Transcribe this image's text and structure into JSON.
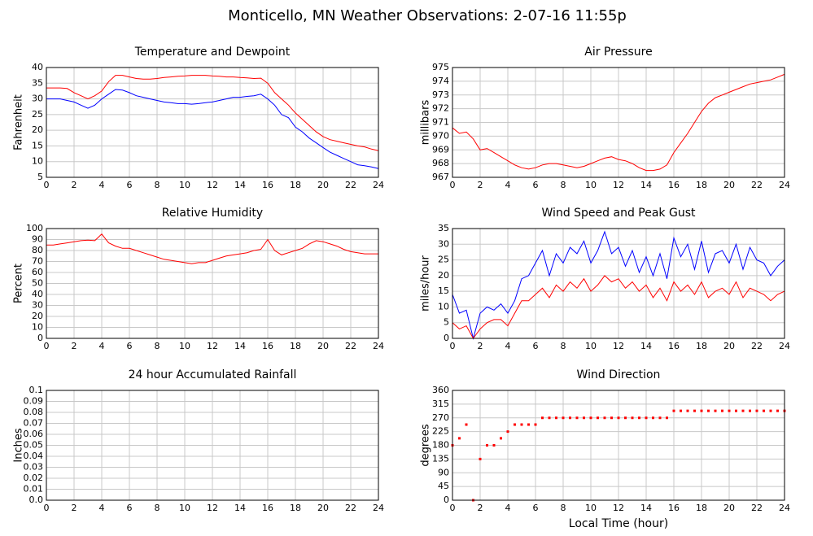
{
  "title": "Monticello, MN Weather Observations: 2-07-16 11:55p",
  "chart_data": [
    {
      "type": "line",
      "title": "Temperature and Dewpoint",
      "ylabel": "Fahrenheit",
      "x": [
        0,
        0.5,
        1,
        1.5,
        2,
        2.5,
        3,
        3.5,
        4,
        4.5,
        5,
        5.5,
        6,
        6.5,
        7,
        7.5,
        8,
        8.5,
        9,
        9.5,
        10,
        10.5,
        11,
        11.5,
        12,
        12.5,
        13,
        13.5,
        14,
        14.5,
        15,
        15.5,
        16,
        16.5,
        17,
        17.5,
        18,
        18.5,
        19,
        19.5,
        20,
        20.5,
        21,
        21.5,
        22,
        22.5,
        23,
        23.5,
        24
      ],
      "series": [
        {
          "color": "#ff0000",
          "values": [
            33.5,
            33.5,
            33.5,
            33.3,
            32,
            31,
            30,
            31,
            32.5,
            35.5,
            37.5,
            37.5,
            37,
            36.5,
            36.3,
            36.3,
            36.5,
            36.8,
            37,
            37.2,
            37.3,
            37.5,
            37.5,
            37.5,
            37.3,
            37.2,
            37,
            37,
            36.8,
            36.7,
            36.5,
            36.6,
            35,
            32,
            30,
            28,
            25.5,
            23.5,
            21.5,
            19.5,
            18,
            17,
            16.5,
            16,
            15.5,
            15,
            14.7,
            14,
            13.5
          ]
        },
        {
          "color": "#0000ff",
          "values": [
            30,
            30,
            30,
            29.5,
            29,
            28,
            27,
            28,
            30,
            31.5,
            33,
            32.8,
            32,
            31,
            30.5,
            30,
            29.5,
            29,
            28.8,
            28.5,
            28.5,
            28.3,
            28.5,
            28.8,
            29,
            29.5,
            30,
            30.5,
            30.5,
            30.8,
            31,
            31.5,
            30,
            28,
            25,
            24,
            21,
            19.5,
            17.5,
            16,
            14.5,
            13,
            12,
            11,
            10,
            9,
            8.7,
            8.3,
            7.8
          ]
        }
      ],
      "xlim": [
        0,
        24
      ],
      "xticks": [
        0,
        2,
        4,
        6,
        8,
        10,
        12,
        14,
        16,
        18,
        20,
        22,
        24
      ],
      "ylim": [
        5,
        40
      ],
      "yticks": [
        5,
        10,
        15,
        20,
        25,
        30,
        35,
        40
      ],
      "grid": true
    },
    {
      "type": "line",
      "title": "Air Pressure",
      "ylabel": "millibars",
      "x": [
        0,
        0.5,
        1,
        1.5,
        2,
        2.5,
        3,
        3.5,
        4,
        4.5,
        5,
        5.5,
        6,
        6.5,
        7,
        7.5,
        8,
        8.5,
        9,
        9.5,
        10,
        10.5,
        11,
        11.5,
        12,
        12.5,
        13,
        13.5,
        14,
        14.5,
        15,
        15.5,
        16,
        16.5,
        17,
        17.5,
        18,
        18.5,
        19,
        19.5,
        20,
        20.5,
        21,
        21.5,
        22,
        22.5,
        23,
        23.5,
        24
      ],
      "series": [
        {
          "color": "#ff0000",
          "values": [
            970.6,
            970.2,
            970.3,
            969.8,
            969,
            969.1,
            968.8,
            968.5,
            968.2,
            967.9,
            967.7,
            967.6,
            967.7,
            967.9,
            968,
            968,
            967.9,
            967.8,
            967.7,
            967.8,
            968,
            968.2,
            968.4,
            968.5,
            968.3,
            968.2,
            968,
            967.7,
            967.5,
            967.5,
            967.6,
            967.9,
            968.8,
            969.5,
            970.2,
            971,
            971.8,
            972.4,
            972.8,
            973,
            973.2,
            973.4,
            973.6,
            973.8,
            973.9,
            974,
            974.1,
            974.3,
            974.5
          ]
        }
      ],
      "xlim": [
        0,
        24
      ],
      "xticks": [
        0,
        2,
        4,
        6,
        8,
        10,
        12,
        14,
        16,
        18,
        20,
        22,
        24
      ],
      "ylim": [
        967,
        975
      ],
      "yticks": [
        967,
        968,
        969,
        970,
        971,
        972,
        973,
        974,
        975
      ],
      "grid": true
    },
    {
      "type": "line",
      "title": "Relative Humidity",
      "ylabel": "Percent",
      "x": [
        0,
        0.5,
        1,
        1.5,
        2,
        2.5,
        3,
        3.5,
        4,
        4.5,
        5,
        5.5,
        6,
        6.5,
        7,
        7.5,
        8,
        8.5,
        9,
        9.5,
        10,
        10.5,
        11,
        11.5,
        12,
        12.5,
        13,
        13.5,
        14,
        14.5,
        15,
        15.5,
        16,
        16.5,
        17,
        17.5,
        18,
        18.5,
        19,
        19.5,
        20,
        20.5,
        21,
        21.5,
        22,
        22.5,
        23,
        23.5,
        24
      ],
      "series": [
        {
          "color": "#ff0000",
          "values": [
            85,
            85,
            86,
            87,
            88,
            89,
            89.5,
            89,
            95,
            87,
            84,
            82,
            82,
            80,
            78,
            76,
            74,
            72,
            71,
            70,
            69,
            68,
            69,
            69,
            71,
            73,
            75,
            76,
            77,
            78,
            80,
            81,
            90,
            80,
            76,
            78,
            80,
            82,
            86,
            89,
            88,
            86,
            84,
            81,
            79,
            78,
            77,
            77,
            77
          ]
        }
      ],
      "xlim": [
        0,
        24
      ],
      "xticks": [
        0,
        2,
        4,
        6,
        8,
        10,
        12,
        14,
        16,
        18,
        20,
        22,
        24
      ],
      "ylim": [
        0,
        100
      ],
      "yticks": [
        0,
        10,
        20,
        30,
        40,
        50,
        60,
        70,
        80,
        90,
        100
      ],
      "grid": true
    },
    {
      "type": "line",
      "title": "Wind Speed and Peak Gust",
      "ylabel": "miles/hour",
      "x": [
        0,
        0.5,
        1,
        1.5,
        2,
        2.5,
        3,
        3.5,
        4,
        4.5,
        5,
        5.5,
        6,
        6.5,
        7,
        7.5,
        8,
        8.5,
        9,
        9.5,
        10,
        10.5,
        11,
        11.5,
        12,
        12.5,
        13,
        13.5,
        14,
        14.5,
        15,
        15.5,
        16,
        16.5,
        17,
        17.5,
        18,
        18.5,
        19,
        19.5,
        20,
        20.5,
        21,
        21.5,
        22,
        22.5,
        23,
        23.5,
        24
      ],
      "series": [
        {
          "color": "#0000ff",
          "values": [
            14,
            8,
            9,
            0,
            8,
            10,
            9,
            11,
            8,
            12,
            19,
            20,
            24,
            28,
            20,
            27,
            24,
            29,
            27,
            31,
            24,
            28,
            34,
            27,
            29,
            23,
            28,
            21,
            26,
            20,
            27,
            19,
            32,
            26,
            30,
            22,
            31,
            21,
            27,
            28,
            24,
            30,
            22,
            29,
            25,
            24,
            20,
            23,
            25
          ]
        },
        {
          "color": "#ff0000",
          "values": [
            5,
            3,
            4,
            0,
            3,
            5,
            6,
            6,
            4,
            8,
            12,
            12,
            14,
            16,
            13,
            17,
            15,
            18,
            16,
            19,
            15,
            17,
            20,
            18,
            19,
            16,
            18,
            15,
            17,
            13,
            16,
            12,
            18,
            15,
            17,
            14,
            18,
            13,
            15,
            16,
            14,
            18,
            13,
            16,
            15,
            14,
            12,
            14,
            15
          ]
        }
      ],
      "xlim": [
        0,
        24
      ],
      "xticks": [
        0,
        2,
        4,
        6,
        8,
        10,
        12,
        14,
        16,
        18,
        20,
        22,
        24
      ],
      "ylim": [
        0,
        35
      ],
      "yticks": [
        0,
        5,
        10,
        15,
        20,
        25,
        30,
        35
      ],
      "grid": true
    },
    {
      "type": "line",
      "title": "24 hour Accumulated Rainfall",
      "ylabel": "Inches",
      "x": [
        0,
        24
      ],
      "series": [
        {
          "color": "#ff0000",
          "values": [
            0,
            0
          ]
        }
      ],
      "xlim": [
        0,
        24
      ],
      "xticks": [
        0,
        2,
        4,
        6,
        8,
        10,
        12,
        14,
        16,
        18,
        20,
        22,
        24
      ],
      "ylim": [
        0,
        0.1
      ],
      "yticks": [
        {
          "value": 0,
          "label": "0.0"
        },
        0.01,
        0.02,
        0.03,
        0.04,
        0.05,
        0.06,
        0.07,
        0.08,
        0.09,
        0.1
      ],
      "grid": true
    },
    {
      "type": "scatter",
      "title": "Wind Direction",
      "ylabel": "degrees",
      "xlabel": "Local Time (hour)",
      "x": [
        0,
        0.5,
        1,
        1.5,
        2,
        2.5,
        3,
        3.5,
        4,
        4.5,
        5,
        5.5,
        6,
        6.5,
        7,
        7.5,
        8,
        8.5,
        9,
        9.5,
        10,
        10.5,
        11,
        11.5,
        12,
        12.5,
        13,
        13.5,
        14,
        14.5,
        15,
        15.5,
        16,
        16.5,
        17,
        17.5,
        18,
        18.5,
        19,
        19.5,
        20,
        20.5,
        21,
        21.5,
        22,
        22.5,
        23,
        23.5,
        24
      ],
      "series": [
        {
          "color": "#ff0000",
          "values": [
            180,
            203,
            248,
            0,
            135,
            180,
            180,
            203,
            225,
            248,
            248,
            248,
            248,
            270,
            270,
            270,
            270,
            270,
            270,
            270,
            270,
            270,
            270,
            270,
            270,
            270,
            270,
            270,
            270,
            270,
            270,
            270,
            293,
            293,
            293,
            293,
            293,
            293,
            293,
            293,
            293,
            293,
            293,
            293,
            293,
            293,
            293,
            293,
            293
          ]
        }
      ],
      "xlim": [
        0,
        24
      ],
      "xticks": [
        0,
        2,
        4,
        6,
        8,
        10,
        12,
        14,
        16,
        18,
        20,
        22,
        24
      ],
      "ylim": [
        0,
        360
      ],
      "yticks": [
        0,
        45,
        90,
        135,
        180,
        225,
        270,
        315,
        360
      ],
      "grid": true
    }
  ]
}
